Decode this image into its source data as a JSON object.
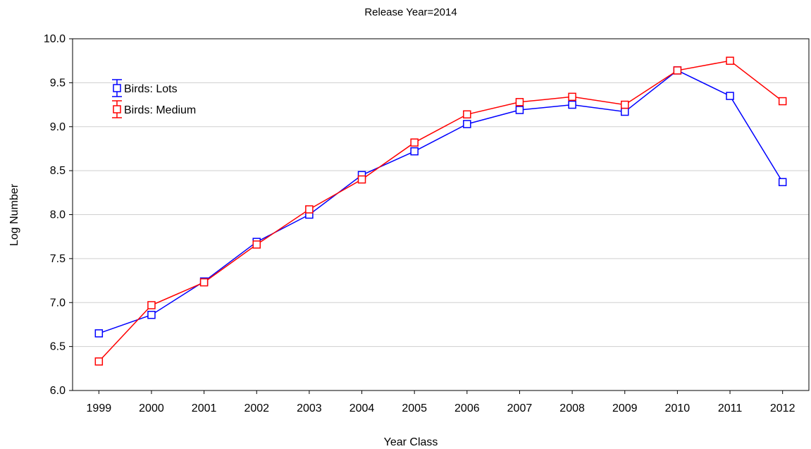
{
  "chart_data": {
    "type": "line",
    "title": "Release Year=2014",
    "xlabel": "Year Class",
    "ylabel": "Log Number",
    "categories": [
      "1999",
      "2000",
      "2001",
      "2002",
      "2003",
      "2004",
      "2005",
      "2006",
      "2007",
      "2008",
      "2009",
      "2010",
      "2011",
      "2012"
    ],
    "ylim": [
      6.0,
      10.0
    ],
    "yticks": [
      "6.0",
      "6.5",
      "7.0",
      "7.5",
      "8.0",
      "8.5",
      "9.0",
      "9.5",
      "10.0"
    ],
    "grid": true,
    "legend_position": "top-left",
    "series": [
      {
        "name": "Birds: Lots",
        "color": "#0000ff",
        "marker": "square",
        "values": [
          6.65,
          6.86,
          7.24,
          7.69,
          8.0,
          8.45,
          8.72,
          9.03,
          9.19,
          9.25,
          9.17,
          9.64,
          9.35,
          8.37
        ]
      },
      {
        "name": "Birds: Medium",
        "color": "#ff0000",
        "marker": "square",
        "values": [
          6.33,
          6.97,
          7.23,
          7.66,
          8.06,
          8.4,
          8.82,
          9.14,
          9.28,
          9.34,
          9.25,
          9.64,
          9.75,
          9.29
        ]
      }
    ]
  }
}
